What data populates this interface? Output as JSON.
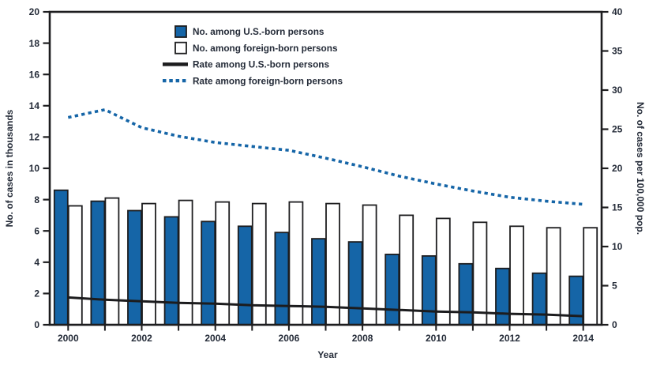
{
  "colors": {
    "bar_blue": "#1565a7",
    "bar_outline_fill": "#ffffff",
    "stroke_black": "#1d1d1f",
    "rate_line_black": "#1c1c1e",
    "rate_line_dotted_blue": "#1565a7",
    "text": "#242b38"
  },
  "chart_data": {
    "type": "bar+line combo",
    "x": [
      2000,
      2001,
      2002,
      2003,
      2004,
      2005,
      2006,
      2007,
      2008,
      2009,
      2010,
      2011,
      2012,
      2013,
      2014
    ],
    "xlabel": "Year",
    "ylabel_left": "No. of cases in thousands",
    "ylabel_right": "No. of cases per 100,000 pop.",
    "ylim_left": [
      0,
      20
    ],
    "ylim_right": [
      0,
      40
    ],
    "yticks_left": [
      0,
      2,
      4,
      6,
      8,
      10,
      12,
      14,
      16,
      18,
      20
    ],
    "yticks_right": [
      0,
      5,
      10,
      15,
      20,
      25,
      30,
      35,
      40
    ],
    "xtick_labeled_years": [
      2000,
      2002,
      2004,
      2006,
      2008,
      2010,
      2012,
      2014
    ],
    "grid": false,
    "legend_position": "inside-top-center",
    "series": [
      {
        "name": "No. among U.S.-born persons",
        "kind": "bar-filled",
        "axis": "left",
        "values": [
          8.6,
          7.9,
          7.3,
          6.9,
          6.6,
          6.3,
          5.9,
          5.5,
          5.3,
          4.5,
          4.4,
          3.9,
          3.6,
          3.3,
          3.1
        ]
      },
      {
        "name": "No. among foreign-born persons",
        "kind": "bar-outline",
        "axis": "left",
        "values": [
          7.6,
          8.1,
          7.75,
          7.95,
          7.85,
          7.75,
          7.85,
          7.75,
          7.65,
          7.0,
          6.8,
          6.55,
          6.3,
          6.2,
          6.2
        ]
      },
      {
        "name": "Rate among U.S.-born persons",
        "kind": "line-solid",
        "axis": "right",
        "values": [
          3.5,
          3.2,
          3.0,
          2.8,
          2.7,
          2.5,
          2.4,
          2.3,
          2.1,
          1.9,
          1.7,
          1.6,
          1.4,
          1.3,
          1.1
        ]
      },
      {
        "name": "Rate among foreign-born persons",
        "kind": "line-dotted",
        "axis": "right",
        "values": [
          26.5,
          27.5,
          25.2,
          24.1,
          23.3,
          22.8,
          22.3,
          21.3,
          20.2,
          19.0,
          18.0,
          17.1,
          16.3,
          15.8,
          15.4
        ]
      }
    ]
  }
}
